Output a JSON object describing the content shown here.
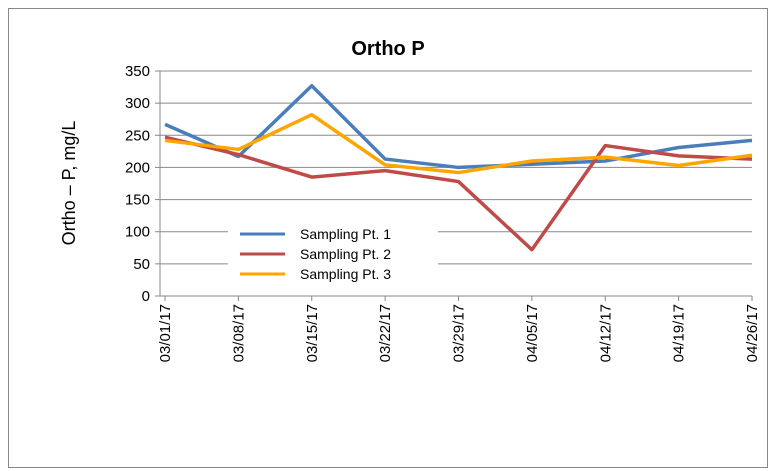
{
  "chart_data": {
    "type": "line",
    "title": "Ortho P",
    "y_label": "Ortho – P, mg/L",
    "categories": [
      "03/01/17",
      "03/08/17",
      "03/15/17",
      "03/22/17",
      "03/29/17",
      "04/05/17",
      "04/12/17",
      "04/19/17",
      "04/26/17"
    ],
    "series": [
      {
        "name": "Sampling Pt. 1",
        "color": "#4a7ebb",
        "values": [
          267,
          217,
          327,
          213,
          200,
          205,
          210,
          231,
          242
        ]
      },
      {
        "name": "Sampling Pt. 2",
        "color": "#be4b48",
        "values": [
          247,
          220,
          185,
          195,
          178,
          72,
          234,
          218,
          213
        ]
      },
      {
        "name": "Sampling Pt. 3",
        "color": "#ffa500",
        "values": [
          242,
          228,
          282,
          204,
          192,
          210,
          216,
          203,
          219
        ]
      }
    ],
    "ylim": [
      0,
      350
    ],
    "yticks": [
      0,
      50,
      100,
      150,
      200,
      250,
      300,
      350
    ],
    "grid": true
  }
}
